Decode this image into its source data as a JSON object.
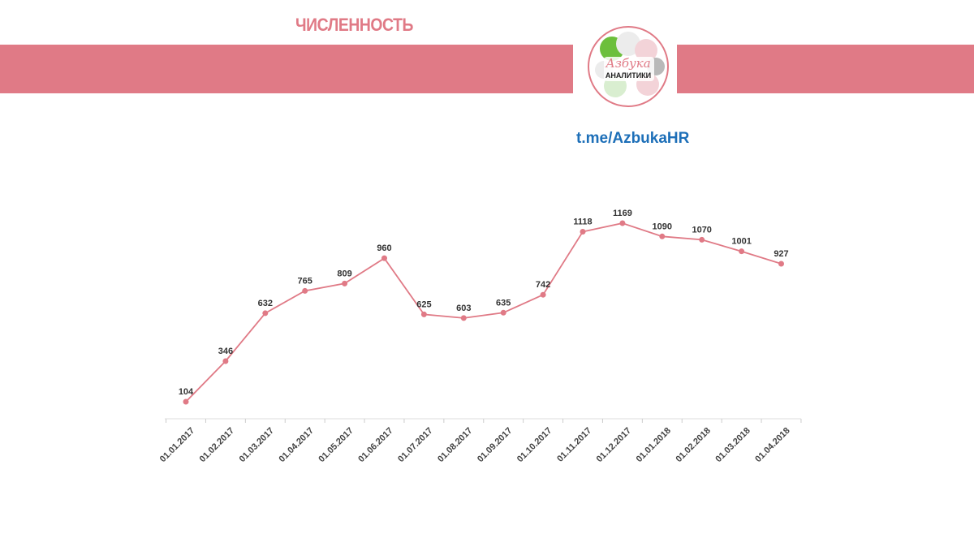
{
  "header": {
    "title": "ЧИСЛЕННОСТЬ",
    "link": "t.me/AzbukaHR"
  },
  "logo": {
    "line1": "Азбука",
    "line2": "АНАЛИТИКИ"
  },
  "colors": {
    "accent": "#e07a86",
    "line": "#e07a86",
    "link": "#1d6fb8",
    "logo_green": "#6cbf3c"
  },
  "chart_data": {
    "type": "line",
    "title": "",
    "xlabel": "",
    "ylabel": "",
    "grid": false,
    "categories": [
      "01.01.2017",
      "01.02.2017",
      "01.03.2017",
      "01.04.2017",
      "01.05.2017",
      "01.06.2017",
      "01.07.2017",
      "01.08.2017",
      "01.09.2017",
      "01.10.2017",
      "01.11.2017",
      "01.12.2017",
      "01.01.2018",
      "01.02.2018",
      "01.03.2018",
      "01.04.2018"
    ],
    "series": [
      {
        "values": [
          104,
          346,
          632,
          765,
          809,
          960,
          625,
          603,
          635,
          742,
          1118,
          1169,
          1090,
          1070,
          1001,
          927
        ]
      }
    ]
  }
}
